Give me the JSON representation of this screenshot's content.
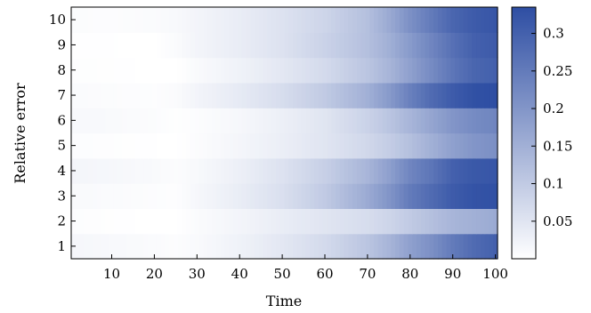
{
  "chart_data": {
    "type": "heatmap",
    "title": "",
    "xlabel": "Time",
    "ylabel": "Relative error",
    "x_range": [
      1,
      100
    ],
    "y_range": [
      1,
      10
    ],
    "x_ticks": [
      "10",
      "20",
      "30",
      "40",
      "50",
      "60",
      "70",
      "80",
      "90",
      "100"
    ],
    "y_ticks": [
      "1",
      "2",
      "3",
      "4",
      "5",
      "6",
      "7",
      "8",
      "9",
      "10"
    ],
    "grid": false,
    "colormap": {
      "low": "#ffffff",
      "high": "#2e4ea3",
      "min": 0,
      "max": 0.335
    },
    "colorbar_ticks": [
      "0.05",
      "0.1",
      "0.15",
      "0.2",
      "0.25",
      "0.3"
    ],
    "x_samples": [
      1,
      10,
      20,
      25,
      30,
      40,
      50,
      60,
      70,
      75,
      80,
      85,
      90,
      95,
      100
    ],
    "rows": [
      {
        "y": 1,
        "values": [
          0.015,
          0.012,
          0.008,
          0.005,
          0.01,
          0.025,
          0.045,
          0.07,
          0.11,
          0.14,
          0.18,
          0.21,
          0.25,
          0.28,
          0.3
        ]
      },
      {
        "y": 2,
        "values": [
          0.005,
          0.002,
          0.0,
          0.0,
          0.008,
          0.02,
          0.035,
          0.05,
          0.065,
          0.08,
          0.1,
          0.12,
          0.14,
          0.15,
          0.16
        ]
      },
      {
        "y": 3,
        "values": [
          0.01,
          0.008,
          0.005,
          0.003,
          0.015,
          0.035,
          0.06,
          0.1,
          0.16,
          0.2,
          0.25,
          0.28,
          0.31,
          0.325,
          0.33
        ]
      },
      {
        "y": 4,
        "values": [
          0.018,
          0.015,
          0.01,
          0.006,
          0.012,
          0.03,
          0.055,
          0.09,
          0.14,
          0.18,
          0.23,
          0.26,
          0.3,
          0.315,
          0.32
        ]
      },
      {
        "y": 5,
        "values": [
          0.005,
          0.003,
          0.001,
          0.0,
          0.006,
          0.018,
          0.032,
          0.05,
          0.075,
          0.095,
          0.12,
          0.15,
          0.18,
          0.2,
          0.21
        ]
      },
      {
        "y": 6,
        "values": [
          0.012,
          0.01,
          0.006,
          0.002,
          0.005,
          0.015,
          0.03,
          0.05,
          0.085,
          0.11,
          0.14,
          0.17,
          0.2,
          0.22,
          0.23
        ]
      },
      {
        "y": 7,
        "values": [
          0.008,
          0.006,
          0.004,
          0.008,
          0.02,
          0.04,
          0.065,
          0.1,
          0.15,
          0.19,
          0.24,
          0.28,
          0.31,
          0.33,
          0.335
        ]
      },
      {
        "y": 8,
        "values": [
          0.003,
          0.002,
          0.0,
          0.0,
          0.01,
          0.025,
          0.045,
          0.07,
          0.11,
          0.14,
          0.18,
          0.22,
          0.26,
          0.29,
          0.3
        ]
      },
      {
        "y": 9,
        "values": [
          0.002,
          0.001,
          0.0,
          0.008,
          0.02,
          0.035,
          0.055,
          0.085,
          0.12,
          0.15,
          0.19,
          0.23,
          0.27,
          0.3,
          0.31
        ]
      },
      {
        "y": 10,
        "values": [
          0.006,
          0.005,
          0.008,
          0.012,
          0.02,
          0.035,
          0.055,
          0.08,
          0.12,
          0.16,
          0.21,
          0.25,
          0.29,
          0.31,
          0.32
        ]
      }
    ]
  }
}
